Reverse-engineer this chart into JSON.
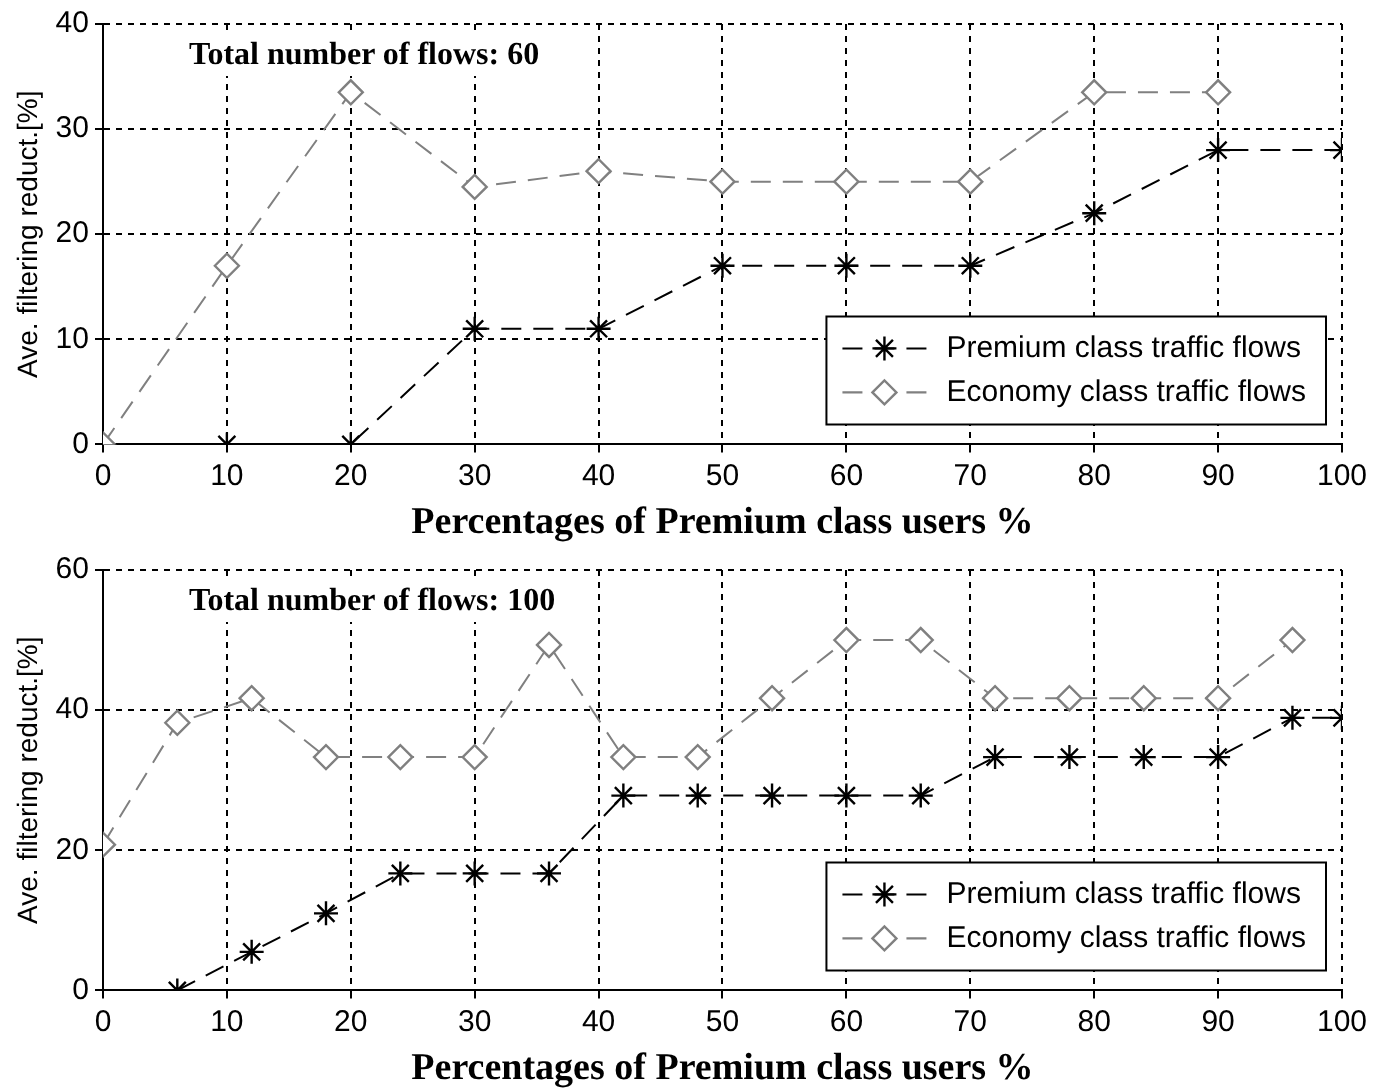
{
  "chart_data": [
    {
      "type": "line",
      "annotations": [
        "Total number of flows: 60"
      ],
      "xlabel": "Percentages of Premium class users %",
      "ylabel": "Ave. filtering reduct.[%]",
      "xlim": [
        0,
        100
      ],
      "xticks": [
        0,
        10,
        20,
        30,
        40,
        50,
        60,
        70,
        80,
        90,
        100
      ],
      "ylim": [
        0,
        40
      ],
      "yticks": [
        0,
        10,
        20,
        30,
        40
      ],
      "grid": true,
      "legend": "bottom right",
      "line_style": "dashed",
      "series": [
        {
          "name": "Premium class traffic flows",
          "color": "#000000",
          "marker": "cross",
          "x": [
            10,
            20,
            30,
            40,
            50,
            60,
            70,
            80,
            90,
            100
          ],
          "values": [
            0,
            0,
            11,
            11,
            17,
            17,
            17,
            22,
            28,
            28
          ]
        },
        {
          "name": "Economy class traffic flows",
          "color": "#808080",
          "marker": "diamond",
          "x": [
            0,
            10,
            20,
            30,
            40,
            50,
            60,
            70,
            80,
            90
          ],
          "values": [
            0,
            17,
            33.5,
            24.5,
            26,
            25,
            25,
            25,
            33.5,
            33.5
          ]
        }
      ]
    },
    {
      "type": "line",
      "annotations": [
        "Total number of flows: 100"
      ],
      "xlabel": "Percentages of Premium class users %",
      "ylabel": "Ave. filtering reduct.[%]",
      "xlim": [
        0,
        100
      ],
      "xticks": [
        0,
        10,
        20,
        30,
        40,
        50,
        60,
        70,
        80,
        90,
        100
      ],
      "ylim": [
        0,
        60
      ],
      "yticks": [
        0,
        20,
        40,
        60
      ],
      "grid": true,
      "legend": "bottom right",
      "line_style": "dashed",
      "series": [
        {
          "name": "Premium class traffic flows",
          "color": "#000000",
          "marker": "cross",
          "x": [
            6,
            12,
            18,
            24,
            30,
            36,
            42,
            48,
            54,
            60,
            66,
            72,
            78,
            84,
            90,
            96,
            100
          ],
          "values": [
            0,
            5.5,
            11,
            16.7,
            16.7,
            16.7,
            27.8,
            27.8,
            27.8,
            27.8,
            27.8,
            33.3,
            33.3,
            33.3,
            33.3,
            38.9,
            38.9
          ]
        },
        {
          "name": "Economy class traffic flows",
          "color": "#808080",
          "marker": "diamond",
          "x": [
            0,
            6,
            12,
            18,
            24,
            30,
            36,
            42,
            48,
            54,
            60,
            66,
            72,
            78,
            84,
            90,
            96
          ],
          "values": [
            20.8,
            38.2,
            41.7,
            33.3,
            33.3,
            33.3,
            49.3,
            33.3,
            33.3,
            41.7,
            50,
            50,
            41.7,
            41.7,
            41.7,
            41.7,
            50
          ]
        }
      ]
    }
  ]
}
